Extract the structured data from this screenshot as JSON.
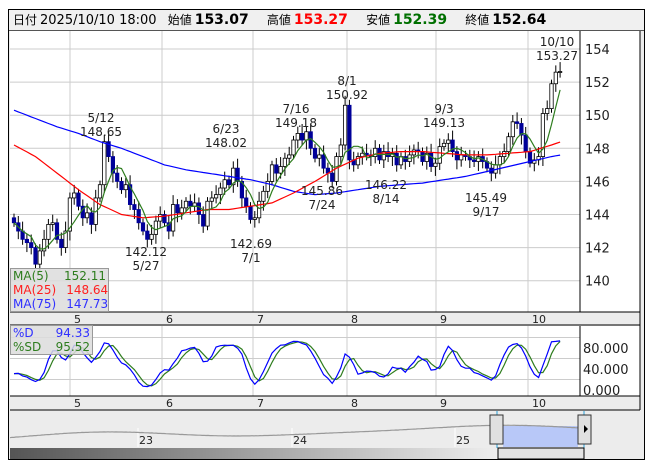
{
  "header": {
    "date_label": "日付",
    "datetime": "2025/10/10 18:00",
    "open_label": "始値",
    "open": "153.07",
    "high_label": "高値",
    "high": "153.27",
    "low_label": "安値",
    "low": "152.39",
    "close_label": "終値",
    "close": "152.64"
  },
  "colors": {
    "up_body": "#ffffff",
    "down_body": "#000099",
    "ma5": "#2e7d1e",
    "ma25": "#ff0000",
    "ma75": "#0000ff",
    "pct_d": "#0000ff",
    "pct_sd": "#2e7d1e",
    "high_text": "#ff0000",
    "low_text": "#007000",
    "nav_fill": "#b8c8f8"
  },
  "legend_ma": [
    {
      "label": "MA(5)",
      "value": "152.11"
    },
    {
      "label": "MA(25)",
      "value": "148.64"
    },
    {
      "label": "MA(75)",
      "value": "147.73"
    }
  ],
  "legend_osc": [
    {
      "label": "%D",
      "value": "94.33"
    },
    {
      "label": "%SD",
      "value": "95.52"
    }
  ],
  "annotations": [
    {
      "date": "5/12",
      "value": "148.65"
    },
    {
      "date": "5/27",
      "value": "142.12"
    },
    {
      "date": "6/23",
      "value": "148.02"
    },
    {
      "date": "7/1",
      "value": "142.69"
    },
    {
      "date": "7/16",
      "value": "149.18"
    },
    {
      "date": "7/24",
      "value": "145.86"
    },
    {
      "date": "8/1",
      "value": "150.92"
    },
    {
      "date": "8/14",
      "value": "146.22"
    },
    {
      "date": "9/3",
      "value": "149.13"
    },
    {
      "date": "9/17",
      "value": "145.49"
    },
    {
      "date": "10/10",
      "value": "153.27"
    }
  ],
  "chart_data": [
    {
      "type": "candlestick",
      "title": "",
      "price_axis": {
        "ylim": [
          139,
          155
        ],
        "ticks": [
          "154",
          "152",
          "150",
          "148",
          "146",
          "144",
          "142",
          "140"
        ]
      },
      "x_ticks": [
        "5",
        "6",
        "7",
        "8",
        "9",
        "10"
      ],
      "closes": [
        143.5,
        143.0,
        142.5,
        142.3,
        142.0,
        141.0,
        141.8,
        142.5,
        143.4,
        143.5,
        142.5,
        142.0,
        143.0,
        145.0,
        145.3,
        144.5,
        143.8,
        144.1,
        143.4,
        145.0,
        145.8,
        148.4,
        147.5,
        146.5,
        146.0,
        145.5,
        145.8,
        144.6,
        144.3,
        143.5,
        143.0,
        142.5,
        142.8,
        143.6,
        144.0,
        143.5,
        143.0,
        144.6,
        144.1,
        144.4,
        144.8,
        144.5,
        144.7,
        144.0,
        143.3,
        144.8,
        145.0,
        145.2,
        145.6,
        146.1,
        145.8,
        146.8,
        146.0,
        145.0,
        144.5,
        143.7,
        143.8,
        144.8,
        145.4,
        146.0,
        147.0,
        146.5,
        146.9,
        147.4,
        147.6,
        148.5,
        148.9,
        148.5,
        149.0,
        148.0,
        147.4,
        147.6,
        146.8,
        146.5,
        146.0,
        147.5,
        148.2,
        150.6,
        147.3,
        147.0,
        147.5,
        147.7,
        147.6,
        147.5,
        148.0,
        147.3,
        147.8,
        147.5,
        147.7,
        147.0,
        147.5,
        147.2,
        147.6,
        147.9,
        147.8,
        147.2,
        147.7,
        146.9,
        147.1,
        148.1,
        148.3,
        148.5,
        147.8,
        147.3,
        147.6,
        147.5,
        147.3,
        147.2,
        147.5,
        147.2,
        146.8,
        146.5,
        147.0,
        147.5,
        147.8,
        148.7,
        149.6,
        149.5,
        148.8,
        147.8,
        147.1,
        147.3,
        147.5,
        150.1,
        150.4,
        151.9,
        152.6,
        152.64
      ],
      "ma25_every5": [
        148.2,
        147.5,
        146.5,
        145.5,
        144.6,
        144.0,
        143.8,
        143.9,
        144.1,
        144.3,
        144.3,
        144.5,
        144.7,
        145.3,
        146.0,
        146.8,
        147.4,
        147.7,
        147.8,
        147.8,
        147.7,
        147.6,
        147.6,
        147.7,
        147.8,
        148.2,
        148.64
      ],
      "ma75_every5": [
        150.3,
        149.8,
        149.3,
        148.9,
        148.4,
        148.0,
        147.5,
        147.0,
        146.7,
        146.5,
        146.3,
        146.1,
        145.8,
        145.4,
        145.2,
        145.3,
        145.5,
        145.7,
        145.8,
        145.9,
        146.1,
        146.3,
        146.6,
        146.9,
        147.2,
        147.5,
        147.73
      ],
      "series": [
        {
          "name": "MA(5)"
        },
        {
          "name": "MA(25)"
        },
        {
          "name": "MA(75)"
        }
      ]
    },
    {
      "type": "line",
      "title": "",
      "y_ticks": [
        "80.000",
        "40.000",
        "0.000"
      ],
      "ylim": [
        0,
        100
      ],
      "series": [
        {
          "name": "%D"
        },
        {
          "name": "%SD"
        }
      ]
    },
    {
      "type": "area",
      "title": "",
      "x_ticks": [
        "23",
        "24",
        "25"
      ],
      "selection": "2025 Apr–Oct"
    }
  ]
}
